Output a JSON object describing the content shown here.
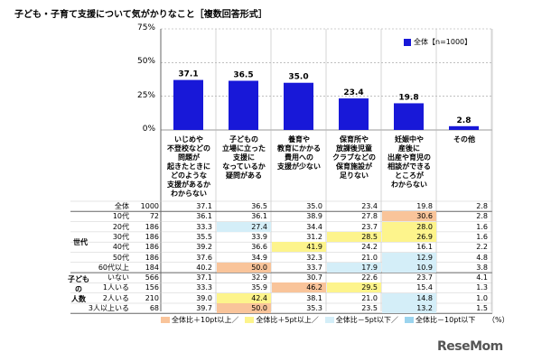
{
  "header": {
    "title": "子ども・子育て支援について気がかりなこと［複数回答形式］"
  },
  "legend": {
    "label": "全体【n=1000】",
    "color": "#1818d8"
  },
  "chart_data": {
    "type": "bar",
    "title": "子ども・子育て支援について気がかりなこと［複数回答形式］",
    "categories": [
      [
        "いじめや",
        "不登校などの",
        "問題が",
        "起きたときに",
        "どのような",
        "支援があるか",
        "わからない"
      ],
      [
        "子どもの",
        "立場に立った",
        "支援に",
        "なっているか",
        "疑問がある"
      ],
      [
        "養育や",
        "教育にかかる",
        "費用への",
        "支援が少ない"
      ],
      [
        "保育所や",
        "放課後児童",
        "クラブなどの",
        "保育施設が",
        "足りない"
      ],
      [
        "妊娠中や",
        "産後に",
        "出産や育児の",
        "相談ができる",
        "ところが",
        "わからない"
      ],
      [
        "その他"
      ]
    ],
    "series": [
      {
        "name": "全体【n=1000】",
        "values": [
          37.1,
          36.5,
          35.0,
          23.4,
          19.8,
          2.8
        ]
      }
    ],
    "data_labels": [
      "37.1",
      "36.5",
      "35.0",
      "23.4",
      "19.8",
      "2.8"
    ],
    "yticks": [
      "0%",
      "25%",
      "50%",
      "75%"
    ],
    "ylim": [
      0,
      75
    ],
    "bar_color": "#1818d8",
    "grid": true,
    "legend_position": "top-right"
  },
  "table": {
    "group_labels": {
      "generation": "世代",
      "children": [
        "子ども",
        "の",
        "人数"
      ]
    },
    "rows": [
      {
        "label": "全体",
        "n": "1000",
        "values": [
          "37.1",
          "36.5",
          "35.0",
          "23.4",
          "19.8",
          "2.8"
        ],
        "hl": [
          "",
          "",
          "",
          "",
          "",
          ""
        ]
      },
      {
        "label": "10代",
        "n": "72",
        "values": [
          "36.1",
          "36.1",
          "38.9",
          "27.8",
          "30.6",
          "2.8"
        ],
        "hl": [
          "",
          "",
          "",
          "",
          "p10",
          ""
        ]
      },
      {
        "label": "20代",
        "n": "186",
        "values": [
          "33.3",
          "27.4",
          "34.4",
          "23.7",
          "28.0",
          "1.6"
        ],
        "hl": [
          "",
          "m5",
          "",
          "",
          "p5",
          ""
        ]
      },
      {
        "label": "30代",
        "n": "186",
        "values": [
          "35.5",
          "33.9",
          "31.2",
          "28.5",
          "26.9",
          "1.6"
        ],
        "hl": [
          "",
          "",
          "",
          "p5",
          "p5",
          ""
        ]
      },
      {
        "label": "40代",
        "n": "186",
        "values": [
          "39.2",
          "36.6",
          "41.9",
          "24.2",
          "16.1",
          "2.2"
        ],
        "hl": [
          "",
          "",
          "p5",
          "",
          "",
          ""
        ]
      },
      {
        "label": "50代",
        "n": "186",
        "values": [
          "37.6",
          "34.9",
          "32.3",
          "21.0",
          "12.9",
          "4.8"
        ],
        "hl": [
          "",
          "",
          "",
          "",
          "m5",
          ""
        ]
      },
      {
        "label": "60代以上",
        "n": "184",
        "values": [
          "40.2",
          "50.0",
          "33.7",
          "17.9",
          "10.9",
          "3.8"
        ],
        "hl": [
          "",
          "p10",
          "",
          "m5",
          "m5",
          ""
        ]
      },
      {
        "label": "いない",
        "n": "566",
        "values": [
          "37.1",
          "32.9",
          "30.7",
          "22.6",
          "23.7",
          "4.1"
        ],
        "hl": [
          "",
          "",
          "",
          "",
          "",
          ""
        ]
      },
      {
        "label": "1人いる",
        "n": "156",
        "values": [
          "33.3",
          "35.9",
          "46.2",
          "29.5",
          "15.4",
          "1.3"
        ],
        "hl": [
          "",
          "",
          "p10",
          "p5",
          "",
          ""
        ]
      },
      {
        "label": "2人いる",
        "n": "210",
        "values": [
          "39.0",
          "42.4",
          "38.1",
          "21.0",
          "14.8",
          "1.0"
        ],
        "hl": [
          "",
          "p5",
          "",
          "",
          "m5",
          ""
        ]
      },
      {
        "label": "3人以上いる",
        "n": "68",
        "values": [
          "39.7",
          "50.0",
          "35.3",
          "23.5",
          "13.2",
          "1.5"
        ],
        "hl": [
          "",
          "p10",
          "",
          "",
          "m5",
          ""
        ]
      }
    ]
  },
  "footer": {
    "keys": [
      {
        "label": "全体比＋10pt以上／",
        "color": "#f9c49a"
      },
      {
        "label": "全体比＋5pt以上／",
        "color": "#fdf48c"
      },
      {
        "label": "全体比－5pt以下／",
        "color": "#d4eef8"
      },
      {
        "label": "全体比－10pt以下",
        "color": "#9bd4ee"
      }
    ],
    "unit": "（%）",
    "logo": "ReseMom"
  }
}
